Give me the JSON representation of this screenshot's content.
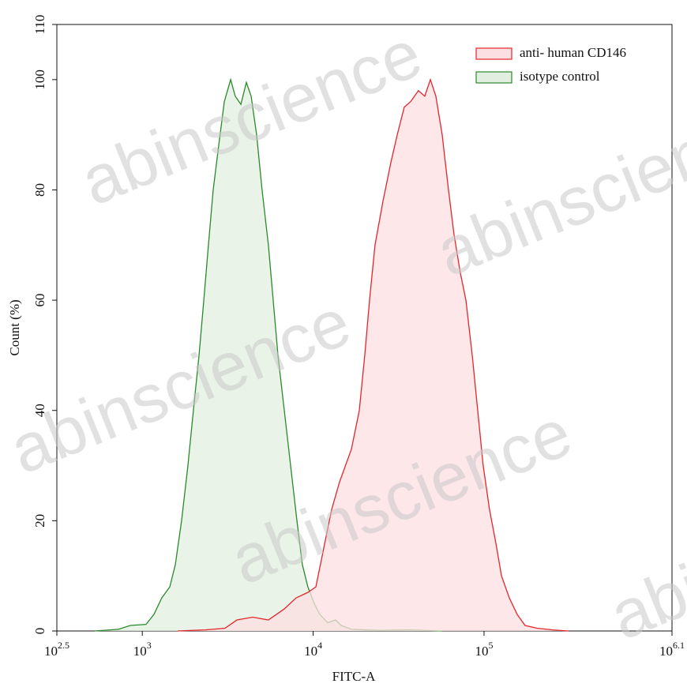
{
  "chart_data": {
    "type": "area",
    "xlabel": "FITC-A",
    "ylabel": "Count  (%)",
    "xscale": "log",
    "xlim": [
      316.23,
      1258925.4
    ],
    "xticks": [
      {
        "value": 316.23,
        "label": "10",
        "superscript": "2.5"
      },
      {
        "value": 1000,
        "label": "10",
        "superscript": "3"
      },
      {
        "value": 10000,
        "label": "10",
        "superscript": "4"
      },
      {
        "value": 100000,
        "label": "10",
        "superscript": "5"
      },
      {
        "value": 1258925.4,
        "label": "10",
        "superscript": "6.1"
      }
    ],
    "ylim": [
      0,
      110
    ],
    "yticks": [
      0,
      20,
      40,
      60,
      80,
      100,
      110
    ],
    "legend": "upper right",
    "watermark": "abinscience",
    "series": [
      {
        "name": "anti- human CD146",
        "color": "#e3262c",
        "fill": "#fcdfe2",
        "x": [
          1611,
          2339,
          3048,
          3581,
          4426,
          5470,
          6776,
          7943,
          9311,
          10370,
          11530,
          12820,
          14260,
          16750,
          18620,
          20040,
          21380,
          23010,
          25640,
          28510,
          31050,
          34120,
          37150,
          41300,
          44980,
          48530,
          52240,
          56890,
          61940,
          66680,
          72610,
          78340,
          85310,
          91830,
          98860,
          107700,
          117200,
          126500,
          140600,
          156300,
          173800,
          204200,
          252400,
          311900
        ],
        "values": [
          0,
          0.2,
          0.5,
          2,
          2.5,
          2,
          4,
          6,
          7,
          8,
          15,
          22,
          27,
          33,
          40,
          50,
          60,
          70,
          78,
          85,
          90,
          95,
          96,
          98,
          97,
          100,
          97,
          90,
          80,
          72,
          65,
          60,
          50,
          40,
          30,
          22,
          16,
          10,
          6,
          3,
          1,
          0.5,
          0.2,
          0
        ]
      },
      {
        "name": "isotype control",
        "color": "#2a8a2a",
        "fill": "#e2efe0",
        "x": [
          527,
          725,
          851,
          1052,
          1170,
          1300,
          1449,
          1560,
          1698,
          1849,
          1991,
          2148,
          2291,
          2438,
          2600,
          2799,
          3020,
          3289,
          3499,
          3776,
          4064,
          4335,
          4667,
          5023,
          5470,
          5834,
          6223,
          6776,
          7379,
          8035,
          8650,
          9311,
          10140,
          10940,
          12160,
          13520,
          14590,
          16750,
          24270,
          37150,
          56890
        ],
        "values": [
          0,
          0.3,
          1,
          1.2,
          3,
          6,
          8,
          12,
          20,
          30,
          40,
          50,
          60,
          70,
          80,
          88,
          96,
          100,
          97,
          95.5,
          99.5,
          97,
          90,
          80,
          70,
          60,
          50,
          40,
          30,
          20,
          12,
          8,
          5,
          3,
          1.5,
          2,
          1,
          0.3,
          0.1,
          0.2,
          0
        ]
      }
    ]
  }
}
